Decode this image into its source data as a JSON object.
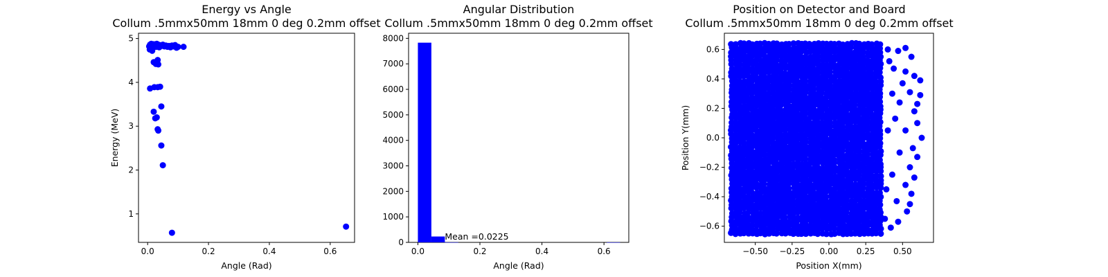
{
  "chart_data": [
    {
      "type": "scatter",
      "title": "Energy vs Angle",
      "subtitle": "Collum .5mmx50mm 18mm 0 deg 0.2mm offset",
      "xlabel": "Angle (Rad)",
      "ylabel": "Energy (MeV)",
      "xlim": [
        -0.03,
        0.68
      ],
      "ylim": [
        0.35,
        5.12
      ],
      "xticks": [
        0.0,
        0.2,
        0.4,
        0.6
      ],
      "xtick_labels": [
        "0.0",
        "0.2",
        "0.4",
        "0.6"
      ],
      "yticks": [
        1,
        2,
        3,
        4,
        5
      ],
      "ytick_labels": [
        "1",
        "2",
        "3",
        "4",
        "5"
      ],
      "color": "#0000ff",
      "grid": false,
      "points": [
        [
          0.005,
          4.82
        ],
        [
          0.008,
          4.86
        ],
        [
          0.01,
          4.8
        ],
        [
          0.012,
          4.88
        ],
        [
          0.015,
          4.84
        ],
        [
          0.018,
          4.79
        ],
        [
          0.02,
          4.87
        ],
        [
          0.022,
          4.83
        ],
        [
          0.025,
          4.85
        ],
        [
          0.028,
          4.81
        ],
        [
          0.03,
          4.88
        ],
        [
          0.032,
          4.84
        ],
        [
          0.035,
          4.86
        ],
        [
          0.038,
          4.8
        ],
        [
          0.04,
          4.85
        ],
        [
          0.045,
          4.83
        ],
        [
          0.05,
          4.86
        ],
        [
          0.055,
          4.82
        ],
        [
          0.06,
          4.84
        ],
        [
          0.065,
          4.81
        ],
        [
          0.07,
          4.83
        ],
        [
          0.075,
          4.8
        ],
        [
          0.08,
          4.84
        ],
        [
          0.085,
          4.82
        ],
        [
          0.09,
          4.85
        ],
        [
          0.095,
          4.79
        ],
        [
          0.1,
          4.81
        ],
        [
          0.118,
          4.81
        ],
        [
          0.007,
          4.75
        ],
        [
          0.015,
          4.72
        ],
        [
          0.02,
          4.46
        ],
        [
          0.027,
          4.42
        ],
        [
          0.033,
          4.51
        ],
        [
          0.035,
          4.41
        ],
        [
          0.008,
          3.86
        ],
        [
          0.022,
          3.89
        ],
        [
          0.033,
          3.89
        ],
        [
          0.041,
          3.9
        ],
        [
          0.02,
          3.33
        ],
        [
          0.025,
          3.18
        ],
        [
          0.03,
          3.2
        ],
        [
          0.045,
          3.45
        ],
        [
          0.033,
          2.93
        ],
        [
          0.035,
          2.9
        ],
        [
          0.045,
          2.56
        ],
        [
          0.05,
          2.11
        ],
        [
          0.08,
          0.57
        ],
        [
          0.652,
          0.71
        ]
      ]
    },
    {
      "type": "bar",
      "title": "Angular Distribution",
      "subtitle": "Collum .5mmx50mm 18mm 0 deg 0.2mm offset",
      "xlabel": "Angle (Rad)",
      "ylabel": "",
      "xlim": [
        -0.03,
        0.68
      ],
      "ylim": [
        0,
        8200
      ],
      "xticks": [
        0.0,
        0.2,
        0.4,
        0.6
      ],
      "xtick_labels": [
        "0.0",
        "0.2",
        "0.4",
        "0.6"
      ],
      "yticks": [
        0,
        1000,
        2000,
        3000,
        4000,
        5000,
        6000,
        7000,
        8000
      ],
      "ytick_labels": [
        "0",
        "1000",
        "2000",
        "3000",
        "4000",
        "5000",
        "6000",
        "7000",
        "8000"
      ],
      "color": "#0000ff",
      "grid": false,
      "bins": [
        {
          "x0": 0.0,
          "x1": 0.0435,
          "value": 7830
        },
        {
          "x0": 0.0435,
          "x1": 0.087,
          "value": 230
        },
        {
          "x0": 0.087,
          "x1": 0.1305,
          "value": 3
        },
        {
          "x0": 0.609,
          "x1": 0.652,
          "value": 1
        }
      ],
      "annotation": {
        "text": "Mean =0.0225",
        "x": 0.087,
        "y": 30
      }
    },
    {
      "type": "scatter",
      "title": "Position on Detector and Board",
      "subtitle": "Collum .5mmx50mm 18mm 0 deg 0.2mm offset",
      "xlabel": "Position X(mm)",
      "ylabel": "Position Y(mm)",
      "xlim": [
        -0.71,
        0.71
      ],
      "ylim": [
        -0.71,
        0.71
      ],
      "xticks": [
        -0.5,
        -0.25,
        0.0,
        0.25,
        0.5
      ],
      "xtick_labels": [
        "−0.50",
        "−0.25",
        "0.00",
        "0.25",
        "0.50"
      ],
      "yticks": [
        -0.6,
        -0.4,
        -0.2,
        0.0,
        0.2,
        0.4,
        0.6
      ],
      "ytick_labels": [
        "−0.6",
        "−0.4",
        "−0.2",
        "0.0",
        "0.2",
        "0.4",
        "0.6"
      ],
      "color": "#0000ff",
      "grid": false,
      "region": {
        "x_range": [
          -0.66,
          0.36
        ],
        "y_range": [
          -0.65,
          0.65
        ]
      },
      "points": [
        [
          0.4,
          0.6
        ],
        [
          0.47,
          0.59
        ],
        [
          0.52,
          0.61
        ],
        [
          0.56,
          0.55
        ],
        [
          0.58,
          0.42
        ],
        [
          0.62,
          0.39
        ],
        [
          0.55,
          0.31
        ],
        [
          0.62,
          0.29
        ],
        [
          0.48,
          0.24
        ],
        [
          0.58,
          0.18
        ],
        [
          0.6,
          0.1
        ],
        [
          0.52,
          0.05
        ],
        [
          0.63,
          0.0
        ],
        [
          0.57,
          -0.07
        ],
        [
          0.6,
          -0.13
        ],
        [
          0.55,
          -0.2
        ],
        [
          0.58,
          -0.27
        ],
        [
          0.52,
          -0.32
        ],
        [
          0.56,
          -0.38
        ],
        [
          0.46,
          -0.43
        ],
        [
          0.53,
          -0.5
        ],
        [
          0.47,
          -0.57
        ],
        [
          0.42,
          -0.61
        ],
        [
          0.38,
          -0.55
        ],
        [
          0.44,
          0.47
        ],
        [
          0.5,
          0.37
        ],
        [
          0.45,
          0.13
        ],
        [
          0.48,
          -0.1
        ],
        [
          0.43,
          -0.25
        ],
        [
          0.41,
          0.52
        ],
        [
          0.39,
          -0.35
        ],
        [
          0.52,
          0.45
        ],
        [
          0.55,
          -0.45
        ],
        [
          0.4,
          0.05
        ],
        [
          0.6,
          0.23
        ],
        [
          0.43,
          0.3
        ]
      ]
    }
  ]
}
